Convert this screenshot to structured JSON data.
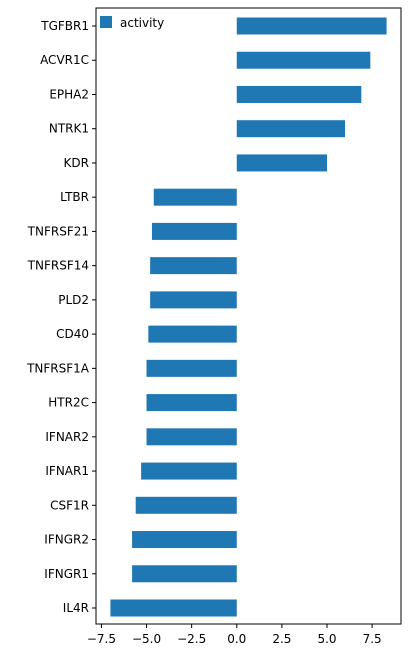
{
  "chart_data": {
    "type": "bar",
    "orientation": "horizontal",
    "categories": [
      "TGFBR1",
      "ACVR1C",
      "EPHA2",
      "NTRK1",
      "KDR",
      "LTBR",
      "TNFRSF21",
      "TNFRSF14",
      "PLD2",
      "CD40",
      "TNFRSF1A",
      "HTR2C",
      "IFNAR2",
      "IFNAR1",
      "CSF1R",
      "IFNGR2",
      "IFNGR1",
      "IL4R"
    ],
    "series": [
      {
        "name": "activity",
        "color": "#1f77b4",
        "values": [
          8.3,
          7.4,
          6.9,
          6.0,
          5.0,
          -4.6,
          -4.7,
          -4.8,
          -4.8,
          -4.9,
          -5.0,
          -5.0,
          -5.0,
          -5.3,
          -5.6,
          -5.8,
          -5.8,
          -7.0
        ]
      }
    ],
    "xlim": [
      -7.8,
      9.1
    ],
    "xticks": [
      "−7.5",
      "−5.0",
      "−2.5",
      "0.0",
      "2.5",
      "5.0",
      "7.5"
    ],
    "xtick_values": [
      -7.5,
      -5.0,
      -2.5,
      0.0,
      2.5,
      5.0,
      7.5
    ],
    "legend": {
      "position": "top-left",
      "frame": false
    },
    "grid": false,
    "title": "",
    "xlabel": "",
    "ylabel": ""
  }
}
